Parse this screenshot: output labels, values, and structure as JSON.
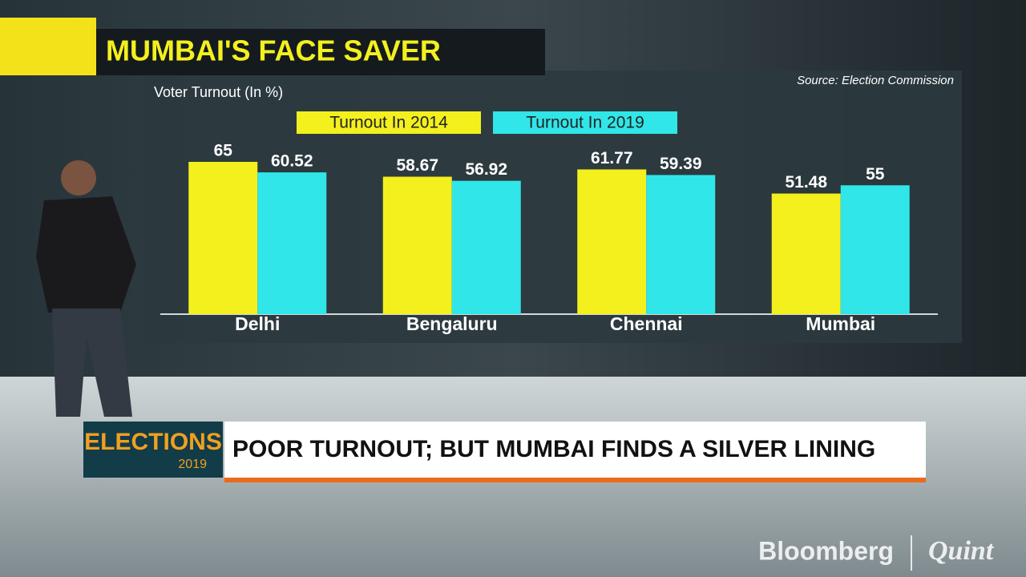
{
  "chart_data": {
    "type": "bar",
    "title": "MUMBAI'S FACE SAVER",
    "y_label": "Voter Turnout (In %)",
    "source": "Source: Election Commission",
    "categories": [
      "Delhi",
      "Bengaluru",
      "Chennai",
      "Mumbai"
    ],
    "series": [
      {
        "name": "Turnout In 2014",
        "color": "#f3f01e",
        "values": [
          65,
          58.67,
          61.77,
          51.48
        ]
      },
      {
        "name": "Turnout In 2019",
        "color": "#30e6e8",
        "values": [
          60.52,
          56.92,
          59.39,
          55
        ]
      }
    ]
  },
  "lower_third": {
    "logo": "ELECTIONS",
    "logo_year": "2019",
    "headline": "POOR TURNOUT; BUT MUMBAI FINDS A SILVER LINING"
  },
  "brand": {
    "left": "Bloomberg",
    "right": "Quint"
  }
}
